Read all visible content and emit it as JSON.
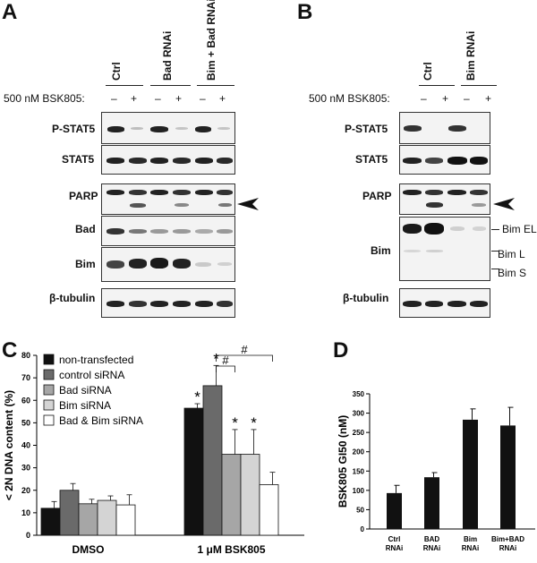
{
  "panelA": {
    "letter": "A",
    "groups": [
      "Ctrl",
      "Bad RNAi",
      "Bim + Bad RNAi"
    ],
    "treatment_label": "500 nM BSK805:",
    "lane_signs": [
      "–",
      "+",
      "–",
      "+",
      "–",
      "+"
    ],
    "rows": [
      "P-STAT5",
      "STAT5",
      "PARP",
      "Bad",
      "Bim",
      "β-tubulin"
    ]
  },
  "panelB": {
    "letter": "B",
    "groups": [
      "Ctrl",
      "Bim RNAi"
    ],
    "treatment_label": "500 nM BSK805:",
    "lane_signs": [
      "–",
      "+",
      "–",
      "+"
    ],
    "rows": [
      "P-STAT5",
      "STAT5",
      "PARP",
      "Bim",
      "β-tubulin"
    ],
    "bim_isoforms": [
      "Bim EL",
      "Bim L",
      "Bim S"
    ]
  },
  "panelC": {
    "letter": "C",
    "marker_symbols": [
      "*",
      "#"
    ],
    "chart_data": {
      "type": "bar",
      "ylabel": "< 2N DNA content (%)",
      "ylim": [
        0,
        80
      ],
      "yticks": [
        0,
        10,
        20,
        30,
        40,
        50,
        60,
        70,
        80
      ],
      "categories": [
        "DMSO",
        "1 μM BSK805"
      ],
      "series": [
        {
          "name": "non-transfected",
          "color": "#111111",
          "values": [
            12,
            56.5
          ],
          "errors": [
            3,
            2
          ]
        },
        {
          "name": "control siRNA",
          "color": "#6a6a6a",
          "values": [
            20,
            66.5
          ],
          "errors": [
            3,
            9
          ]
        },
        {
          "name": "Bad siRNA",
          "color": "#a6a6a6",
          "values": [
            14,
            36
          ],
          "errors": [
            2,
            11
          ]
        },
        {
          "name": "Bim siRNA",
          "color": "#d4d4d4",
          "values": [
            15.5,
            36
          ],
          "errors": [
            2,
            11
          ]
        },
        {
          "name": "Bad & Bim siRNA",
          "color": "#ffffff",
          "values": [
            13.5,
            22.5
          ],
          "errors": [
            4.5,
            5.5
          ]
        }
      ],
      "legend": "top-left"
    }
  },
  "panelD": {
    "letter": "D",
    "chart_data": {
      "type": "bar",
      "ylabel": "BSK805 GI50 (nM)",
      "ylim": [
        0,
        350
      ],
      "yticks": [
        0,
        50,
        100,
        150,
        200,
        250,
        300,
        350
      ],
      "categories": [
        [
          "Ctrl",
          "RNAi"
        ],
        [
          "BAD",
          "RNAi"
        ],
        [
          "Bim",
          "RNAi"
        ],
        [
          "Bim+BAD",
          "RNAi"
        ]
      ],
      "values": [
        93,
        134,
        283,
        268
      ],
      "errors": [
        20,
        12,
        28,
        47
      ],
      "color": "#111111"
    }
  }
}
